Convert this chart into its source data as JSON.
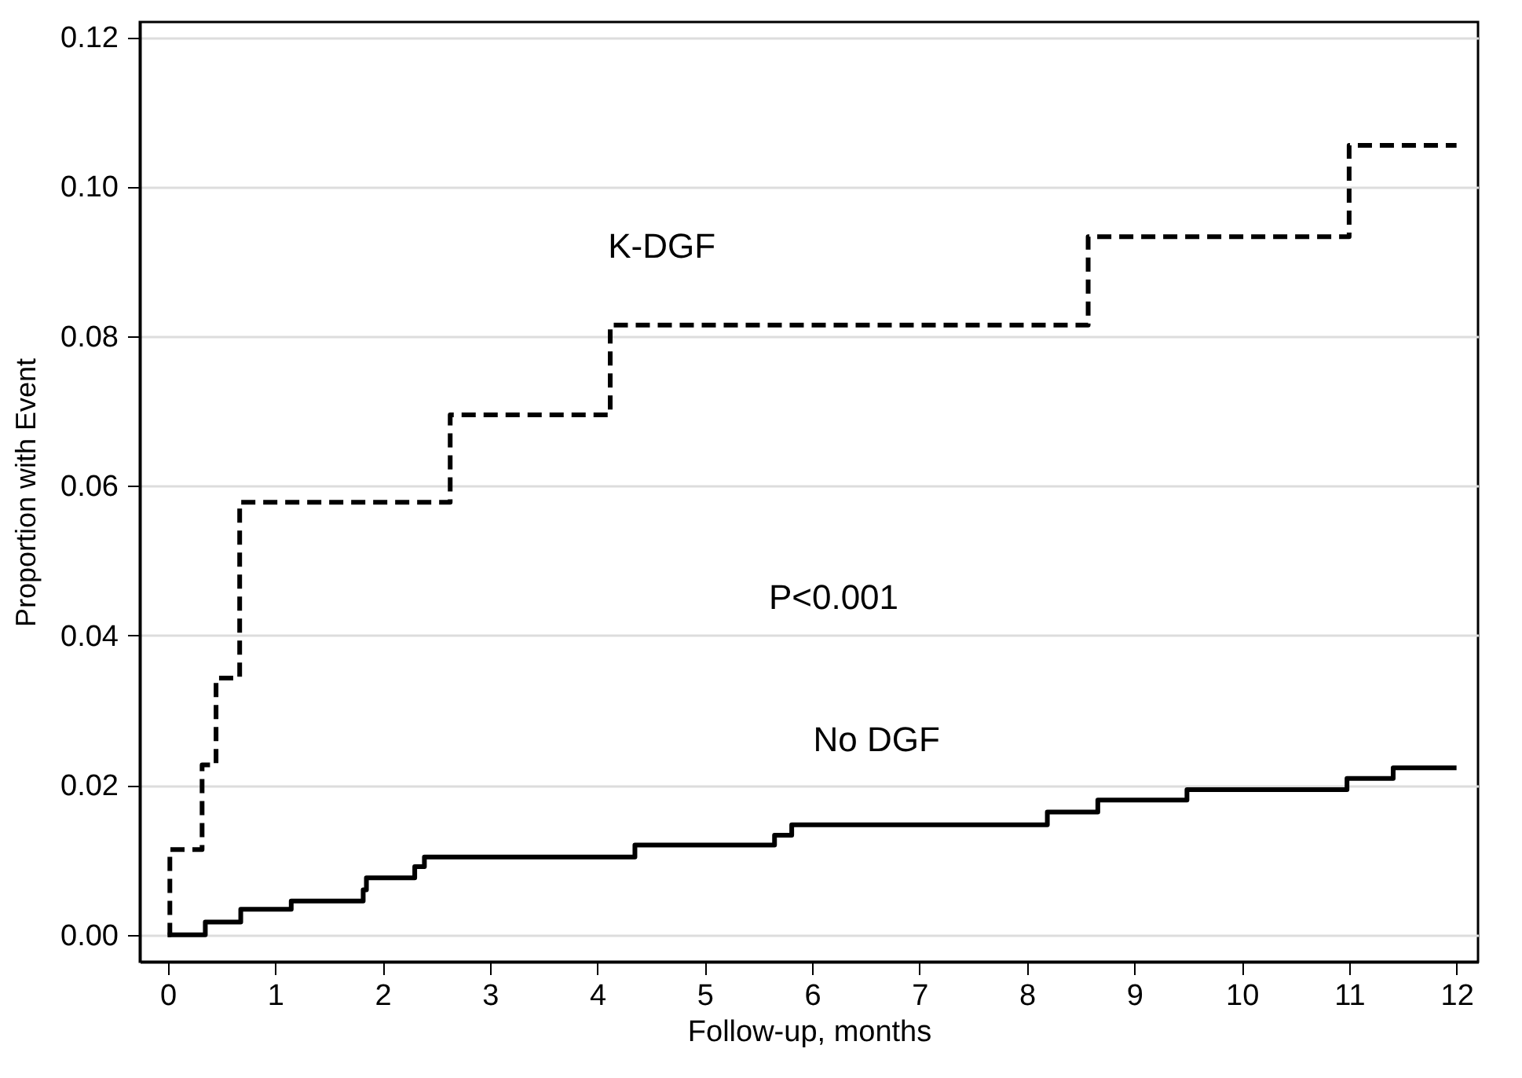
{
  "chart_data": {
    "type": "step",
    "xlabel": "Follow-up, months",
    "ylabel": "Proportion with Event",
    "xlim": [
      -0.26,
      12.2
    ],
    "xticks": [
      0,
      1,
      2,
      3,
      4,
      5,
      6,
      7,
      8,
      9,
      10,
      11,
      12
    ],
    "ylim": [
      -0.0036,
      0.122
    ],
    "yticks": [
      {
        "value": 0,
        "label": "0.00"
      },
      {
        "value": 0.02,
        "label": "0.02"
      },
      {
        "value": 0.04,
        "label": "0.04"
      },
      {
        "value": 0.06,
        "label": "0.06"
      },
      {
        "value": 0.08,
        "label": "0.08"
      },
      {
        "value": 0.1,
        "label": "0.10"
      },
      {
        "value": 0.12,
        "label": "0.12"
      }
    ],
    "grid": "y",
    "annotations": [
      "P<0.001"
    ],
    "series": [
      {
        "name": "K-DGF",
        "color": "#000000",
        "line_style": "dashed",
        "x": [
          0,
          0.02,
          0.32,
          0.45,
          0.67,
          2.63,
          4.12,
          8.57,
          11.0,
          12
        ],
        "values": [
          0,
          0.0114,
          0.0227,
          0.0343,
          0.0578,
          0.0695,
          0.0815,
          0.0933,
          0.1055,
          0.1055
        ]
      },
      {
        "name": "No DGF",
        "color": "#000000",
        "line_style": "solid",
        "x": [
          0,
          0.35,
          0.68,
          1.15,
          1.82,
          1.85,
          2.3,
          2.39,
          4.35,
          5.65,
          5.81,
          8.19,
          8.66,
          9.49,
          10.98,
          11.41,
          12
        ],
        "values": [
          0,
          0.0017,
          0.0034,
          0.0045,
          0.006,
          0.0076,
          0.0091,
          0.0104,
          0.012,
          0.0133,
          0.0147,
          0.0164,
          0.018,
          0.0194,
          0.0209,
          0.0223,
          0.0223
        ]
      }
    ]
  }
}
